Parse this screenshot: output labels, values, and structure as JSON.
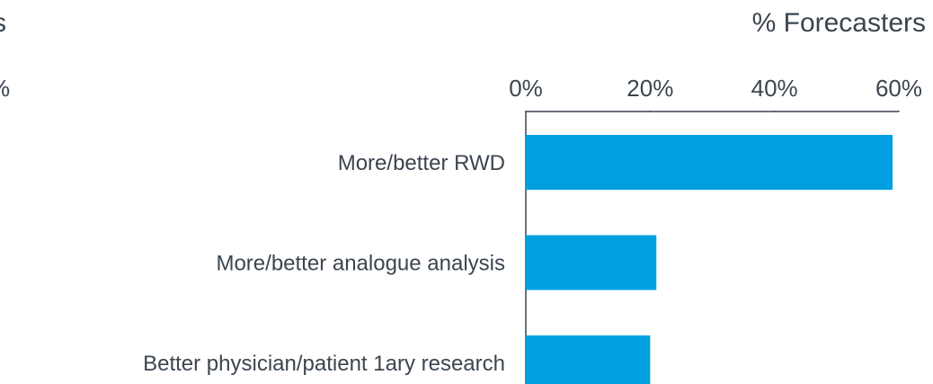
{
  "cropped_text": [
    "s",
    "%"
  ],
  "chart_data": {
    "type": "barh",
    "title": "% Forecasters",
    "categories": [
      "More/better RWD",
      "More/better analogue analysis",
      "Better physician/patient 1ary research"
    ],
    "values": [
      59,
      21,
      20
    ],
    "color": "#00a0e0",
    "xlim": [
      0,
      60
    ],
    "xticks": [
      {
        "value": 0,
        "label": "0%"
      },
      {
        "value": 20,
        "label": "20%"
      },
      {
        "value": 40,
        "label": "40%"
      },
      {
        "value": 60,
        "label": "60%"
      }
    ],
    "grid": false
  }
}
